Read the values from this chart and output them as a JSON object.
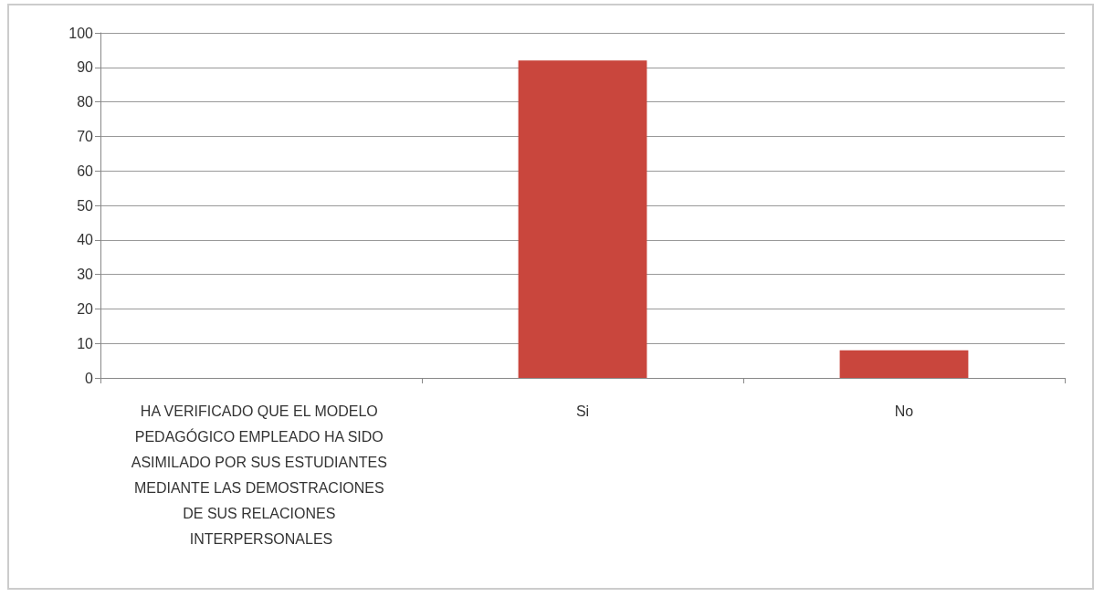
{
  "chart_data": {
    "type": "bar",
    "categories": [
      "HA VERIFICADO QUE EL MODELO PEDAGÓGICO EMPLEADO HA SIDO ASIMILADO POR SUS ESTUDIANTES MEDIANTE LAS DEMOSTRACIONES DE SUS RELACIONES INTERPERSONALES",
      "Si",
      "No"
    ],
    "values": [
      null,
      92,
      8
    ],
    "color": "#c9463d",
    "ylim": [
      0,
      100
    ],
    "yticks": [
      0,
      10,
      20,
      30,
      40,
      50,
      60,
      70,
      80,
      90,
      100
    ],
    "grid": "y"
  }
}
